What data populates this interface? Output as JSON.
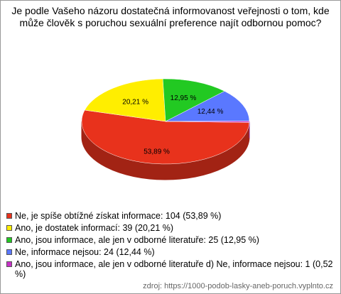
{
  "chart_data": {
    "type": "pie",
    "title": "Je podle Vašeho názoru dostatečná informovanost veřejnosti o tom, kde může člověk s poruchou sexuální preference najít odbornou pomoc?",
    "categories": [
      "Ne, je spíše obtížné získat informace: 104 (53,89 %)",
      "Ano, je dostatek informací: 39 (20,21 %)",
      "Ano, jsou informace, ale jen v odborné literatuře: 25 (12,95 %)",
      "Ne, informace nejsou: 24 (12,44 %)",
      "Ano, jsou informace, ale jen v odborné literatuře d) Ne, informace nejsou: 1 (0,52 %)"
    ],
    "values": [
      53.89,
      20.21,
      12.95,
      12.44,
      0.52
    ],
    "value_labels": [
      "53,89 %",
      "20,21 %",
      "12,95 %",
      "12,44 %",
      null
    ],
    "colors": [
      "#e8321c",
      "#ffee00",
      "#22c922",
      "#5a78ff",
      "#c832c8"
    ],
    "legend": "bottom-left",
    "source": "zdroj: https://1000-podob-lasky-aneb-poruch.vyplnto.cz"
  }
}
